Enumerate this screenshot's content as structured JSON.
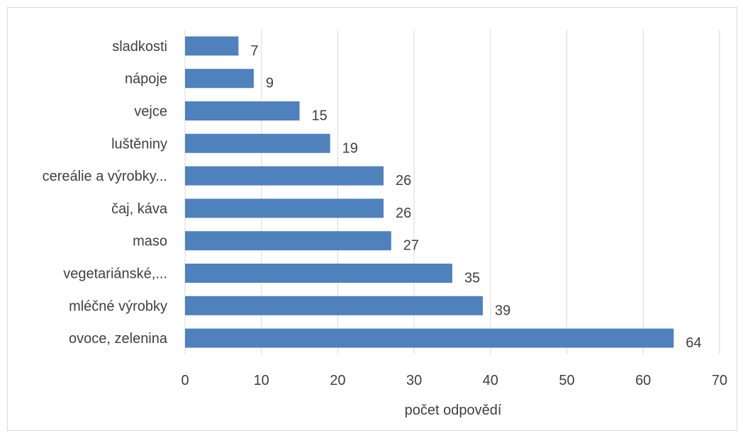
{
  "chart_data": {
    "type": "bar",
    "orientation": "horizontal",
    "categories": [
      "ovoce, zelenina",
      "mléčné výrobky",
      "vegetariánské,...",
      "maso",
      "čaj, káva",
      "cereálie a výrobky...",
      "luštěniny",
      "vejce",
      "nápoje",
      "sladkosti"
    ],
    "values": [
      64,
      39,
      35,
      27,
      26,
      26,
      19,
      15,
      9,
      7
    ],
    "xlabel": "počet odpovědí",
    "ylabel": "",
    "title": "",
    "xlim": [
      0,
      70
    ],
    "xticks": [
      0,
      10,
      20,
      30,
      40,
      50,
      60,
      70
    ],
    "grid": "vertical",
    "legend": "none",
    "data_labels": true,
    "bar_color": "#4f81bd",
    "gridline_color": "#d9d9d9",
    "text_color": "#404040"
  }
}
